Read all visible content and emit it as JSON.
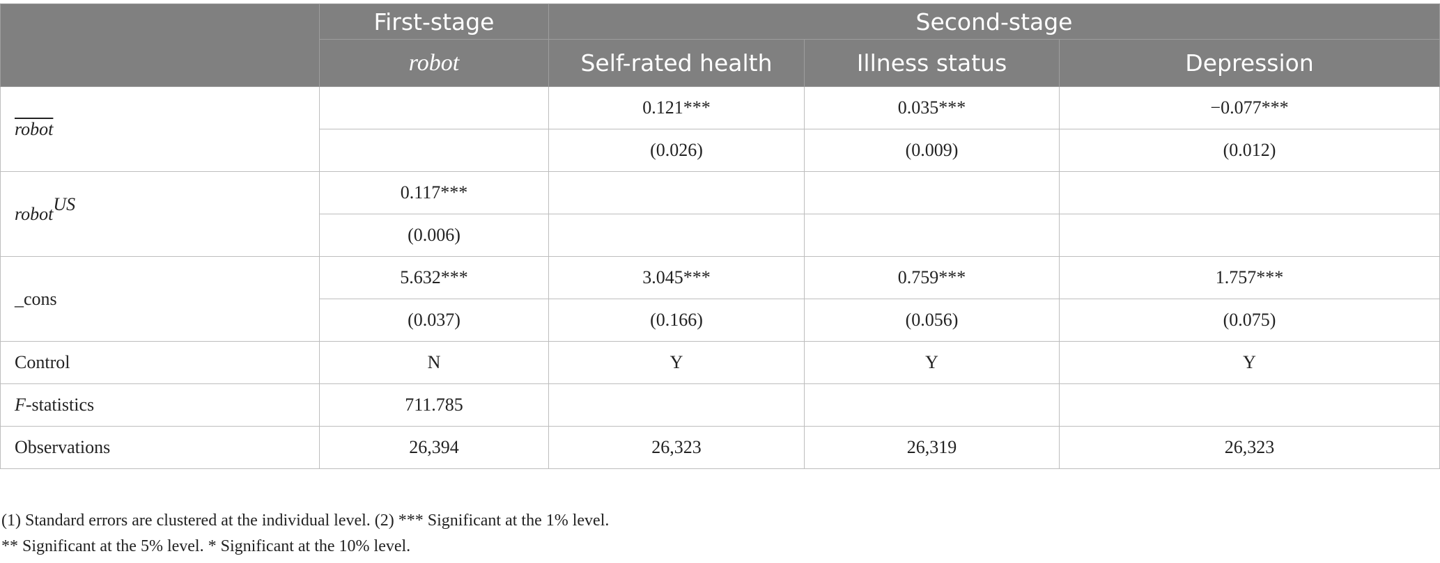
{
  "header": {
    "stage1": "First-stage",
    "stage2": "Second-stage",
    "col1": "robot",
    "col2": "Self-rated health",
    "col3": "Illness status",
    "col4": "Depression"
  },
  "rows": {
    "robot_bar": {
      "label": "robot",
      "coef": [
        "",
        "0.121***",
        "0.035***",
        "−0.077***"
      ],
      "se": [
        "",
        "(0.026)",
        "(0.009)",
        "(0.012)"
      ]
    },
    "robot_us": {
      "label": "robot",
      "label_sup": "US",
      "coef": [
        "0.117***",
        "",
        "",
        ""
      ],
      "se": [
        "(0.006)",
        "",
        "",
        ""
      ]
    },
    "cons": {
      "label": "_cons",
      "coef": [
        "5.632***",
        "3.045***",
        "0.759***",
        "1.757***"
      ],
      "se": [
        "(0.037)",
        "(0.166)",
        "(0.056)",
        "(0.075)"
      ]
    },
    "control": {
      "label": "Control",
      "values": [
        "N",
        "Y",
        "Y",
        "Y"
      ]
    },
    "fstat": {
      "label_italic": "F",
      "label_rest": "-statistics",
      "values": [
        "711.785",
        "",
        "",
        ""
      ]
    },
    "obs": {
      "label": "Observations",
      "values": [
        "26,394",
        "26,323",
        "26,319",
        "26,323"
      ]
    }
  },
  "notes": {
    "line1": "(1) Standard errors are clustered at the individual level. (2) *** Significant at the 1% level.",
    "line2": "** Significant at the 5% level. * Significant at the 10% level."
  }
}
